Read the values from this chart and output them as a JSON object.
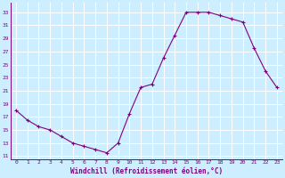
{
  "x": [
    0,
    1,
    2,
    3,
    4,
    5,
    6,
    7,
    8,
    9,
    10,
    11,
    12,
    13,
    14,
    15,
    16,
    17,
    18,
    19,
    20,
    21,
    22,
    23
  ],
  "y": [
    18,
    16.5,
    15.5,
    15,
    14,
    13,
    12.5,
    12,
    11.5,
    13,
    17.5,
    21.5,
    22,
    26,
    29.5,
    33,
    33,
    33,
    32.5,
    32,
    31.5,
    27.5,
    24,
    21.5
  ],
  "line_color": "#800080",
  "marker_color": "#800080",
  "bg_color": "#cceeff",
  "grid_color": "#ffffff",
  "xlabel": "Windchill (Refroidissement éolien,°C)",
  "xlabel_color": "#800080",
  "tick_color": "#800080",
  "ylim": [
    10.5,
    34.5
  ],
  "yticks": [
    11,
    13,
    15,
    17,
    19,
    21,
    23,
    25,
    27,
    29,
    31,
    33
  ],
  "xlim": [
    -0.5,
    23.5
  ],
  "xticks": [
    0,
    1,
    2,
    3,
    4,
    5,
    6,
    7,
    8,
    9,
    10,
    11,
    12,
    13,
    14,
    15,
    16,
    17,
    18,
    19,
    20,
    21,
    22,
    23
  ]
}
